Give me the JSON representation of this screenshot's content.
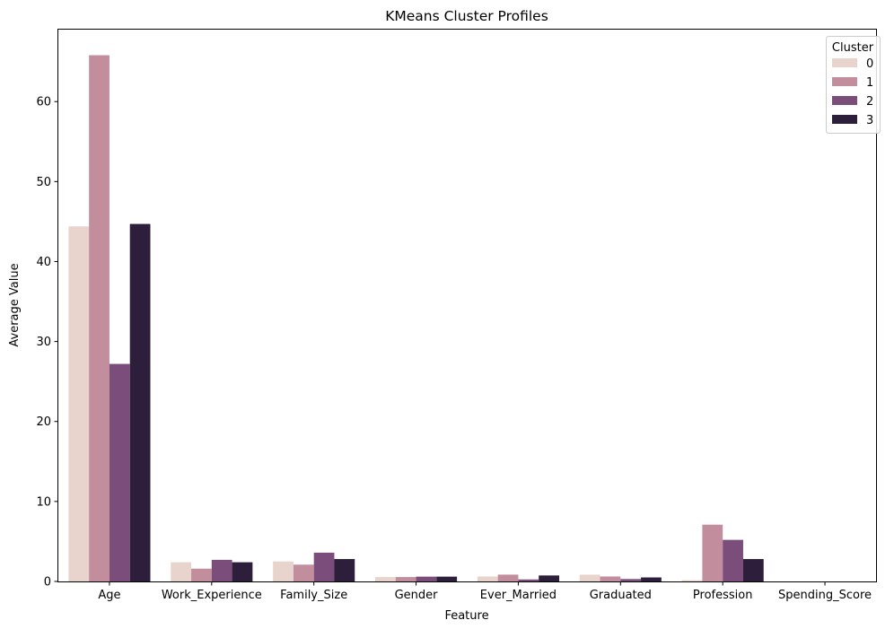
{
  "chart_data": {
    "type": "bar",
    "title": "KMeans Cluster Profiles",
    "xlabel": "Feature",
    "ylabel": "Average Value",
    "ylim": [
      0,
      69
    ],
    "yticks": [
      0,
      10,
      20,
      30,
      40,
      50,
      60
    ],
    "grid": false,
    "legend": {
      "title": "Cluster",
      "placement": "top-right"
    },
    "categories": [
      "Age",
      "Work_Experience",
      "Family_Size",
      "Gender",
      "Ever_Married",
      "Graduated",
      "Profession",
      "Spending_Score"
    ],
    "series": [
      {
        "name": "0",
        "color": "#e8d4cd",
        "values": [
          44.4,
          2.4,
          2.5,
          0.55,
          0.62,
          0.85,
          0.15,
          0.0
        ]
      },
      {
        "name": "1",
        "color": "#c28d9d",
        "values": [
          65.8,
          1.6,
          2.1,
          0.55,
          0.85,
          0.62,
          7.1,
          0.0
        ]
      },
      {
        "name": "2",
        "color": "#7b4d7a",
        "values": [
          27.2,
          2.7,
          3.6,
          0.6,
          0.25,
          0.3,
          5.2,
          0.0
        ]
      },
      {
        "name": "3",
        "color": "#2d1f3b",
        "values": [
          44.7,
          2.4,
          2.8,
          0.6,
          0.75,
          0.5,
          2.8,
          0.0
        ]
      }
    ]
  }
}
